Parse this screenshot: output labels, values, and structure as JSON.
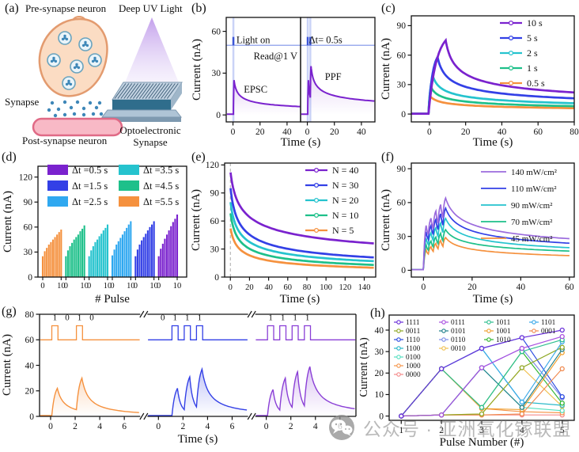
{
  "palette": {
    "purple": "#7A22CE",
    "blue": "#3340E6",
    "sky": "#2FA8F0",
    "cyan": "#25C3CE",
    "green": "#1EC08A",
    "orange": "#F5913E",
    "violet": "#9B6BDD",
    "gpurple": "#8A3FD6"
  },
  "panels": {
    "a": {
      "label": "(a)",
      "pre_synapse": "Pre-synapse neuron",
      "deep_uv": "Deep UV Light",
      "synapse": "Synapse",
      "post_synapse": "Post-synapse neuron",
      "device": "Optoelectronic Synapse"
    },
    "b": {
      "label": "(b)"
    },
    "c": {
      "label": "(c)"
    },
    "d": {
      "label": "(d)"
    },
    "e": {
      "label": "(e)"
    },
    "f": {
      "label": "(f)"
    },
    "g": {
      "label": "(g)"
    },
    "h": {
      "label": "(h)"
    }
  },
  "watermark": {
    "text": "公众号 · 亚洲氧化镓联盟"
  },
  "chart_data": [
    {
      "panel": "b",
      "type": "line",
      "xlabel": "Time (s)",
      "ylabel": "Current (nA)",
      "xlim": [
        -5,
        50
      ],
      "ylim": [
        -5,
        70
      ],
      "xticks": [
        0,
        20,
        40
      ],
      "yticks": [
        0,
        30,
        60
      ],
      "light_level_nA": 50,
      "color": "purple",
      "subpanels": [
        {
          "annotation": "EPSC",
          "texts": [
            "Light on",
            "Read@1 V"
          ],
          "pulse_times_s": [
            0.3
          ],
          "peaks_nA": [
            25
          ],
          "end_nA": 6
        },
        {
          "annotation": "PPF",
          "texts": [
            "Δt= 0.5s"
          ],
          "pulse_times_s": [
            0.3,
            2.2
          ],
          "peaks_nA": [
            25,
            35
          ],
          "end_nA": 10
        }
      ]
    },
    {
      "panel": "c",
      "type": "line",
      "xlabel": "Time (s)",
      "ylabel": "Current (nA)",
      "xlim": [
        -10,
        80
      ],
      "ylim": [
        -8,
        100
      ],
      "xticks": [
        0,
        20,
        40,
        60,
        80
      ],
      "yticks": [
        0,
        30,
        60,
        90
      ],
      "legend_position": "top-right",
      "series": [
        {
          "name": "10 s",
          "color": "purple",
          "rise_s": 9,
          "peak_nA": 75,
          "end_nA": 22
        },
        {
          "name": "5 s",
          "color": "blue",
          "rise_s": 4.5,
          "peak_nA": 58,
          "end_nA": 16
        },
        {
          "name": "2 s",
          "color": "cyan",
          "rise_s": 2,
          "peak_nA": 38,
          "end_nA": 11
        },
        {
          "name": "1 s",
          "color": "green",
          "rise_s": 1,
          "peak_nA": 27,
          "end_nA": 8
        },
        {
          "name": "0.5 s",
          "color": "orange",
          "rise_s": 0.5,
          "peak_nA": 18,
          "end_nA": 6
        }
      ]
    },
    {
      "panel": "d",
      "type": "bar",
      "xlabel": "# Pulse",
      "ylabel": "Current (nA)",
      "ylim": [
        0,
        133
      ],
      "yticks": [
        0,
        30,
        60,
        90,
        120
      ],
      "pulses_per_group": 10,
      "legend": [
        {
          "label": "Δt =0.5 s",
          "color": "purple"
        },
        {
          "label": "Δt =1.5 s",
          "color": "blue"
        },
        {
          "label": "Δt =2.5 s",
          "color": "sky"
        },
        {
          "label": "Δt =3.5 s",
          "color": "cyan"
        },
        {
          "label": "Δt =4.5 s",
          "color": "green"
        },
        {
          "label": "Δt =5.5 s",
          "color": "orange"
        }
      ],
      "groups": [
        {
          "label": "Δt =5.5 s",
          "color": "orange",
          "values": [
            25,
            31,
            35,
            39,
            42,
            45,
            48,
            51,
            54,
            57
          ]
        },
        {
          "label": "Δt =4.5 s",
          "color": "green",
          "values": [
            25,
            32,
            37,
            41,
            45,
            48,
            51,
            55,
            58,
            62
          ]
        },
        {
          "label": "Δt =3.5 s",
          "color": "cyan",
          "values": [
            25,
            32,
            37,
            42,
            45,
            49,
            52,
            56,
            59,
            63
          ]
        },
        {
          "label": "Δt =2.5 s",
          "color": "sky",
          "values": [
            26,
            33,
            39,
            43,
            47,
            51,
            55,
            59,
            63,
            67
          ]
        },
        {
          "label": "Δt =1.5 s",
          "color": "blue",
          "values": [
            25,
            33,
            39,
            44,
            48,
            52,
            56,
            60,
            63,
            67
          ]
        },
        {
          "label": "Δt =0.5 s",
          "color": "purple",
          "values": [
            25,
            34,
            40,
            46,
            51,
            56,
            61,
            66,
            70,
            75
          ]
        }
      ]
    },
    {
      "panel": "e",
      "type": "line",
      "xlabel": "Time (s)",
      "ylabel": "Current (nA)",
      "xlim": [
        -6,
        152
      ],
      "ylim": [
        0,
        122
      ],
      "xticks": [
        0,
        20,
        40,
        60,
        80,
        100,
        120,
        140
      ],
      "yticks": [
        0,
        30,
        60,
        90,
        120
      ],
      "legend_position": "top-right",
      "dashed_line_x": 0,
      "series": [
        {
          "name": "N = 40",
          "color": "purple",
          "start_nA": 112,
          "end_nA": 36
        },
        {
          "name": "N = 30",
          "color": "blue",
          "start_nA": 95,
          "end_nA": 21
        },
        {
          "name": "N = 20",
          "color": "cyan",
          "start_nA": 80,
          "end_nA": 17
        },
        {
          "name": "N = 10",
          "color": "green",
          "start_nA": 68,
          "end_nA": 13
        },
        {
          "name": "N = 5",
          "color": "orange",
          "start_nA": 52,
          "end_nA": 10
        }
      ]
    },
    {
      "panel": "f",
      "type": "line",
      "xlabel": "Time (s)",
      "ylabel": "Current (nA)",
      "xlim": [
        -5,
        62
      ],
      "ylim": [
        -6,
        95
      ],
      "xticks": [
        0,
        20,
        40,
        60
      ],
      "yticks": [
        0,
        30,
        60,
        90
      ],
      "legend_position": "top-right",
      "stim_window_s": [
        0,
        10
      ],
      "series": [
        {
          "name": "140 mW/cm²",
          "color": "violet",
          "peak_nA": 64,
          "end_nA": 28
        },
        {
          "name": "110 mW/cm²",
          "color": "blue",
          "peak_nA": 55,
          "end_nA": 24
        },
        {
          "name": "90 mW/cm²",
          "color": "cyan",
          "peak_nA": 46,
          "end_nA": 20
        },
        {
          "name": "70 mW/cm²",
          "color": "green",
          "peak_nA": 36,
          "end_nA": 17
        },
        {
          "name": "45 mW/cm²",
          "color": "orange",
          "peak_nA": 29,
          "end_nA": 13
        }
      ]
    },
    {
      "panel": "g",
      "type": "line",
      "xlabel": "Time (s)",
      "ylabel": "Current (nA)",
      "ylim": [
        0,
        80
      ],
      "yticks": [
        0,
        20,
        40,
        60,
        80
      ],
      "xticks_per_segment": [
        0,
        2,
        4,
        6
      ],
      "xlim": [
        -0.9,
        7.3
      ],
      "pulse_base_nA": 60,
      "pulse_top_nA": 71,
      "segments": [
        {
          "bits": "1 0 1 0",
          "bit_color": "#222222",
          "color": "orange",
          "pulse_starts_s": [
            0.1,
            2.1
          ],
          "epsc_peaks_nA": [
            22,
            30
          ],
          "end_nA": 3
        },
        {
          "bits": "0 1 1 1",
          "bit_color": "#222222",
          "color": "blue",
          "pulse_starts_s": [
            1.1,
            2.1,
            3.1
          ],
          "epsc_peaks_nA": [
            22,
            31,
            37
          ],
          "end_nA": 5
        },
        {
          "bits": "1 1 1 1",
          "bit_color": "#8A3FD6",
          "color": "gpurple",
          "pulse_starts_s": [
            0.1,
            1.1,
            2.1,
            3.1
          ],
          "epsc_peaks_nA": [
            21,
            30,
            35,
            39
          ],
          "end_nA": 6
        }
      ]
    },
    {
      "panel": "h",
      "type": "line",
      "xlabel": "Pulse Number (#)",
      "ylabel": "Current (nA)",
      "x": [
        1,
        2,
        3,
        4,
        5
      ],
      "xlim": [
        0.7,
        5.3
      ],
      "ylim": [
        -2,
        47
      ],
      "yticks": [
        0,
        10,
        20,
        30,
        40
      ],
      "series": [
        {
          "name": "1111",
          "color": "#6A30D9",
          "col": 0,
          "row": 0,
          "values": [
            0,
            22,
            31.5,
            36.5,
            40
          ]
        },
        {
          "name": "0111",
          "color": "#A94FE0",
          "col": 1,
          "row": 0,
          "values": [
            0,
            0.5,
            22.5,
            31.5,
            37
          ]
        },
        {
          "name": "1011",
          "color": "#2FBF8F",
          "col": 2,
          "row": 0,
          "values": [
            0,
            22,
            4,
            30,
            35.5
          ]
        },
        {
          "name": "1101",
          "color": "#3AA8E8",
          "col": 3,
          "row": 0,
          "values": [
            0,
            22,
            31.5,
            6.5,
            34.5
          ]
        },
        {
          "name": "0011",
          "color": "#8FA826",
          "col": 0,
          "row": 1,
          "values": [
            0,
            0.5,
            1,
            22.5,
            32
          ]
        },
        {
          "name": "0101",
          "color": "#1F7F8A",
          "col": 1,
          "row": 1,
          "values": [
            0,
            0.5,
            22.5,
            4,
            31
          ]
        },
        {
          "name": "1001",
          "color": "#F0A030",
          "col": 2,
          "row": 1,
          "values": [
            0,
            22,
            3.5,
            3,
            29.5
          ]
        },
        {
          "name": "0001",
          "color": "#F08A50",
          "col": 3,
          "row": 1,
          "values": [
            0,
            0.5,
            0.5,
            1,
            22
          ]
        },
        {
          "name": "1110",
          "color": "#2B4AE0",
          "col": 0,
          "row": 2,
          "values": [
            0,
            22,
            31.5,
            36.5,
            9
          ]
        },
        {
          "name": "0110",
          "color": "#7A8AE8",
          "col": 1,
          "row": 2,
          "values": [
            0,
            0.5,
            22.5,
            31.5,
            8.5
          ]
        },
        {
          "name": "1010",
          "color": "#2FB52F",
          "col": 2,
          "row": 2,
          "values": [
            0,
            22,
            4,
            30,
            6
          ]
        },
        {
          "name": "1100",
          "color": "#28B8C8",
          "col": 0,
          "row": 3,
          "values": [
            0,
            22,
            31.5,
            6.5,
            5
          ]
        },
        {
          "name": "0010",
          "color": "#F0C050",
          "col": 1,
          "row": 3,
          "values": [
            0,
            0.5,
            1,
            22.5,
            4.5
          ]
        },
        {
          "name": "0100",
          "color": "#55E0C0",
          "col": 0,
          "row": 4,
          "values": [
            0,
            0.5,
            22.5,
            4,
            2.5
          ]
        },
        {
          "name": "1000",
          "color": "#F5954A",
          "col": 0,
          "row": 5,
          "values": [
            0,
            22,
            3.5,
            2,
            1.5
          ]
        },
        {
          "name": "0000",
          "color": "#F58A8A",
          "col": 0,
          "row": 6,
          "values": [
            0,
            0.5,
            0.5,
            0.5,
            0.5
          ]
        }
      ]
    }
  ]
}
